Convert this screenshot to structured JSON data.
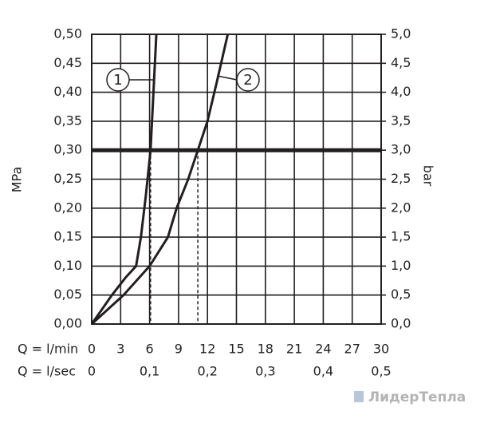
{
  "chart_data": {
    "type": "line",
    "ylabel": "MPa",
    "y2label": "bar",
    "xlabel": "Q = l/min",
    "x2label": "Q = l/sec",
    "xlim": [
      0,
      30
    ],
    "xticks": [
      0,
      3,
      6,
      9,
      12,
      15,
      18,
      21,
      24,
      27,
      30
    ],
    "x2lim": [
      0,
      0.5
    ],
    "x2ticks": [
      {
        "value": 0,
        "label": "0"
      },
      {
        "value": 0.1,
        "label": "0,1"
      },
      {
        "value": 0.2,
        "label": "0,2"
      },
      {
        "value": 0.3,
        "label": "0,3"
      },
      {
        "value": 0.4,
        "label": "0,4"
      },
      {
        "value": 0.5,
        "label": "0,5"
      }
    ],
    "ylim": [
      0,
      0.5
    ],
    "yticks": [
      {
        "value": 0,
        "label": "0,00"
      },
      {
        "value": 0.05,
        "label": "0,05"
      },
      {
        "value": 0.1,
        "label": "0,10"
      },
      {
        "value": 0.15,
        "label": "0,15"
      },
      {
        "value": 0.2,
        "label": "0,20"
      },
      {
        "value": 0.25,
        "label": "0,25"
      },
      {
        "value": 0.3,
        "label": "0,30"
      },
      {
        "value": 0.35,
        "label": "0,35"
      },
      {
        "value": 0.4,
        "label": "0,40"
      },
      {
        "value": 0.45,
        "label": "0,45"
      },
      {
        "value": 0.5,
        "label": "0,50"
      }
    ],
    "y2lim": [
      0,
      5
    ],
    "y2ticks": [
      {
        "value": 0,
        "label": "0,0"
      },
      {
        "value": 0.5,
        "label": "0,5"
      },
      {
        "value": 1,
        "label": "1,0"
      },
      {
        "value": 1.5,
        "label": "1,5"
      },
      {
        "value": 2,
        "label": "2,0"
      },
      {
        "value": 2.5,
        "label": "2,5"
      },
      {
        "value": 3,
        "label": "3,0"
      },
      {
        "value": 3.5,
        "label": "3,5"
      },
      {
        "value": 4,
        "label": "4,0"
      },
      {
        "value": 4.5,
        "label": "4,5"
      },
      {
        "value": 5,
        "label": "5,0"
      }
    ],
    "grid": true,
    "threshold": 0.3,
    "drop_lines": [
      6.1,
      11
    ],
    "series": [
      {
        "name": "1",
        "color": "#231f20",
        "x": [
          0,
          2.1,
          3.5,
          4.6,
          5.1,
          5.6,
          6.1,
          6.4,
          6.7
        ],
        "values": [
          0,
          0.05,
          0.08,
          0.1,
          0.15,
          0.22,
          0.3,
          0.4,
          0.5
        ]
      },
      {
        "name": "2",
        "color": "#231f20",
        "x": [
          0,
          3.3,
          6,
          7.9,
          8.8,
          10,
          11,
          12,
          13,
          14.1
        ],
        "values": [
          0,
          0.05,
          0.1,
          0.15,
          0.2,
          0.25,
          0.3,
          0.35,
          0.42,
          0.5
        ]
      }
    ]
  },
  "watermark": "ЛидерТепла"
}
